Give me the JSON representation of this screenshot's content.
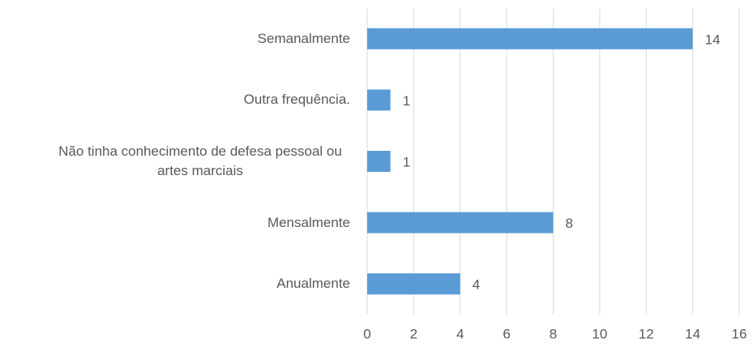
{
  "chart_data": {
    "type": "bar",
    "orientation": "horizontal",
    "categories": [
      "Semanalmente",
      "Outra frequência.",
      "Não tinha conhecimento de defesa pessoal ou artes marciais",
      "Mensalmente",
      "Anualmente"
    ],
    "values": [
      14,
      1,
      1,
      8,
      4
    ],
    "color": "#5b9bd5",
    "xlim": [
      0,
      16
    ],
    "xticks": [
      0,
      2,
      4,
      6,
      8,
      10,
      12,
      14,
      16
    ],
    "grid": true
  }
}
